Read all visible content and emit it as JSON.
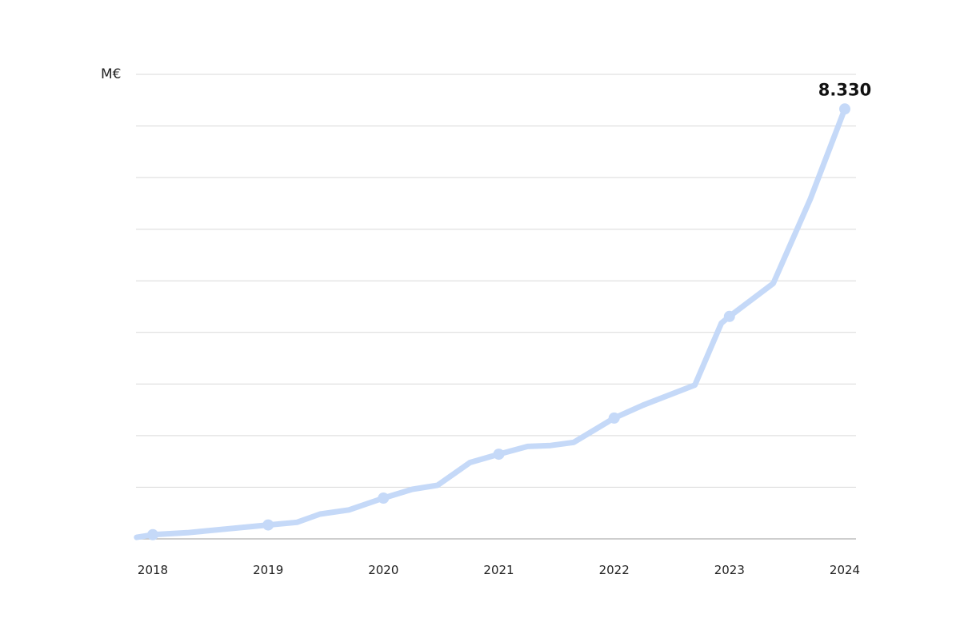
{
  "chart_data": {
    "type": "line",
    "ylabel": "M€",
    "x_tick_labels": [
      "2018",
      "2019",
      "2020",
      "2021",
      "2022",
      "2023",
      "2024"
    ],
    "end_value_label": "8.330",
    "ylim": [
      0,
      9000
    ],
    "grid": true,
    "legend": "none",
    "line_color": "#c5d9f8",
    "series": [
      {
        "x": [
          2017.86,
          2018.0,
          2018.3,
          2019.0,
          2019.25,
          2019.45,
          2019.7,
          2020.0,
          2020.25,
          2020.47,
          2020.75,
          2021.0,
          2021.25,
          2021.45,
          2021.65,
          2022.0,
          2022.25,
          2022.7,
          2022.93,
          2023.0,
          2023.38,
          2023.7,
          2024.0
        ],
        "y": [
          30,
          80,
          120,
          270,
          320,
          480,
          560,
          790,
          960,
          1040,
          1480,
          1640,
          1790,
          1810,
          1870,
          2340,
          2590,
          2980,
          4180,
          4310,
          4950,
          6580,
          8330
        ],
        "markers": [
          1,
          3,
          7,
          11,
          15,
          19,
          22
        ]
      }
    ]
  }
}
